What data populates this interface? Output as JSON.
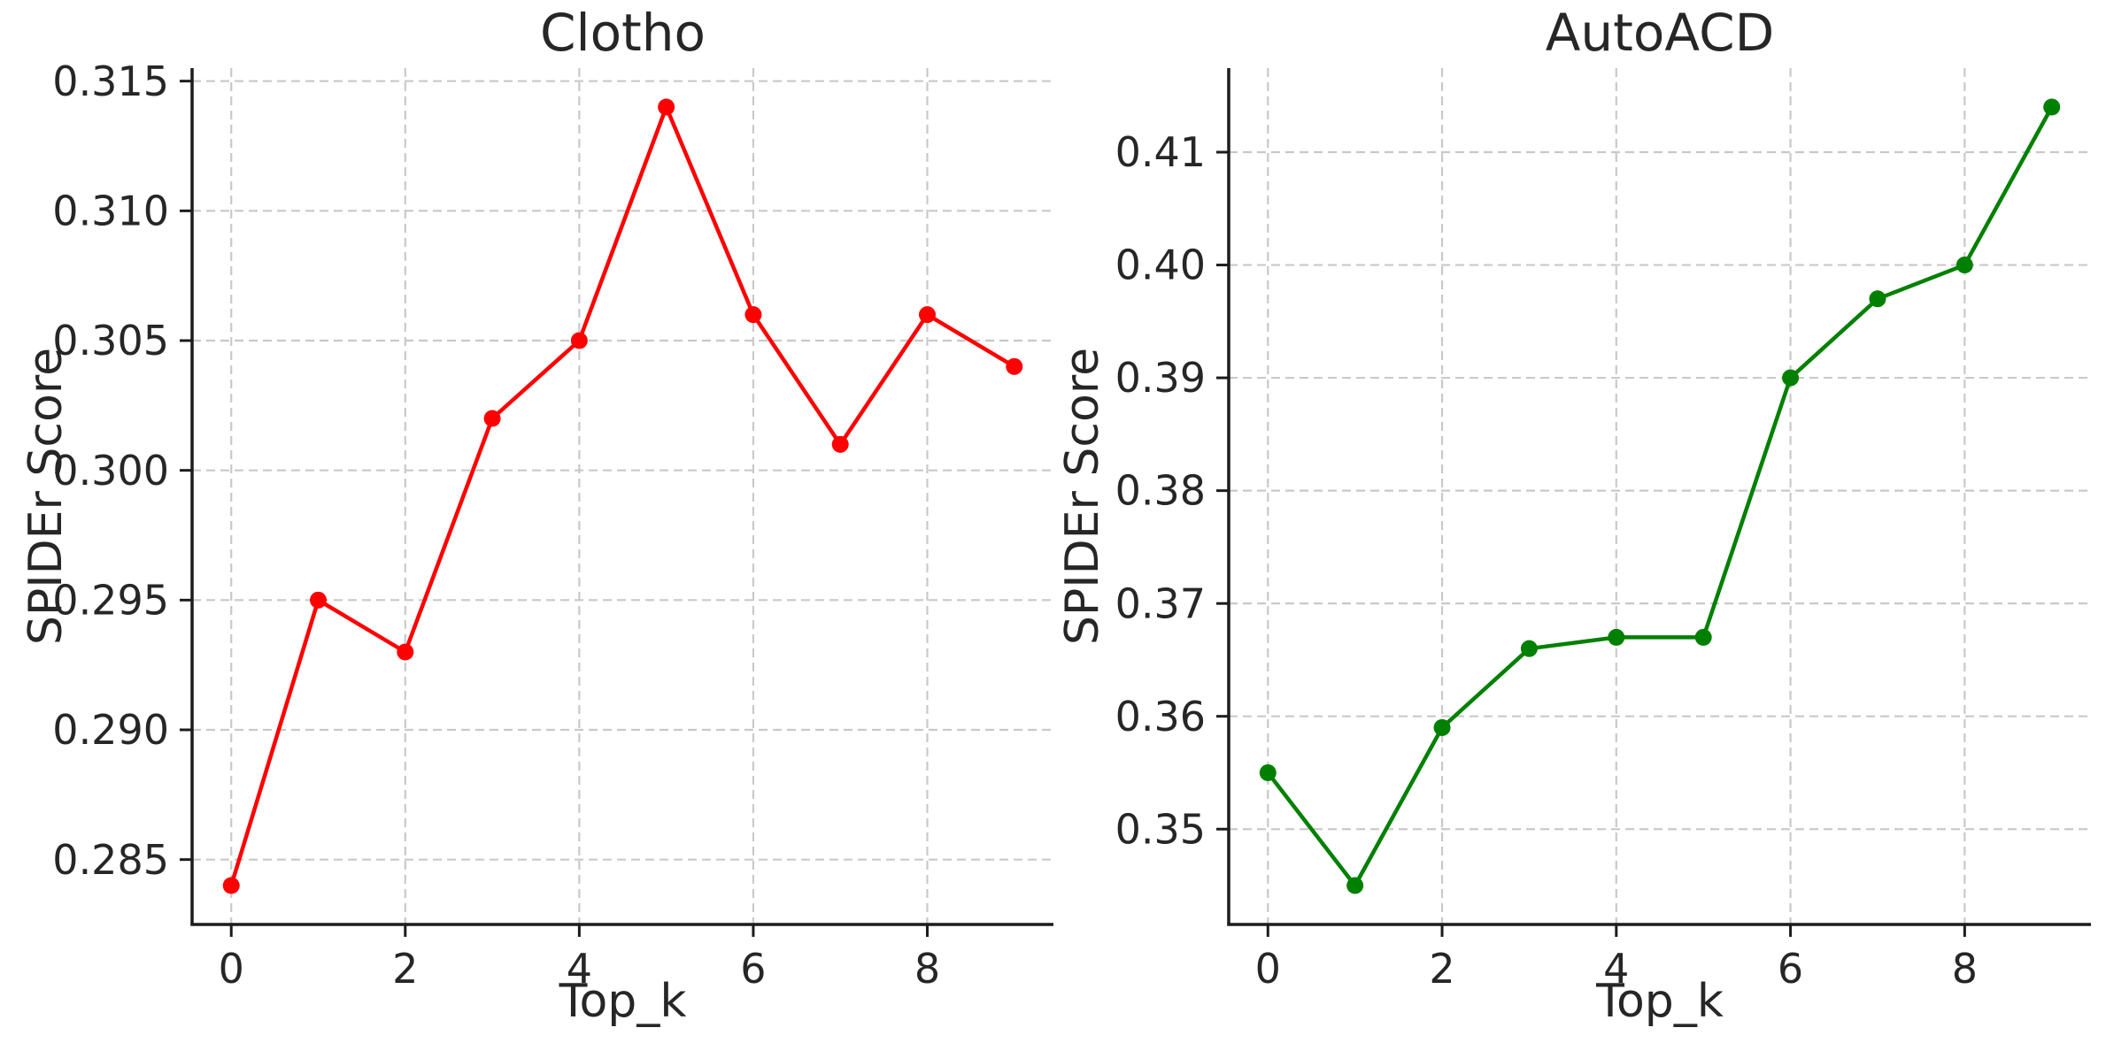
{
  "figure": {
    "background": "#ffffff",
    "text_color": "#262626"
  },
  "chart_data": [
    {
      "type": "line",
      "title": "Clotho",
      "xlabel": "Top_k",
      "ylabel": "SPIDEr Score",
      "x": [
        0,
        1,
        2,
        3,
        4,
        5,
        6,
        7,
        8,
        9
      ],
      "values": [
        0.284,
        0.295,
        0.293,
        0.302,
        0.305,
        0.314,
        0.306,
        0.301,
        0.306,
        0.304
      ],
      "line_color": "#ff0000",
      "marker": "circle",
      "grid": true,
      "legend": null,
      "xlim": [
        -0.45,
        9.45
      ],
      "ylim": [
        0.2825,
        0.3155
      ],
      "xticks": [
        0,
        2,
        4,
        6,
        8
      ],
      "xtick_labels": [
        "0",
        "2",
        "4",
        "6",
        "8"
      ],
      "yticks": [
        0.285,
        0.29,
        0.295,
        0.3,
        0.305,
        0.31,
        0.315
      ],
      "ytick_labels": [
        "0.285",
        "0.290",
        "0.295",
        "0.300",
        "0.305",
        "0.310",
        "0.315"
      ]
    },
    {
      "type": "line",
      "title": "AutoACD",
      "xlabel": "Top_k",
      "ylabel": "SPIDEr Score",
      "x": [
        0,
        1,
        2,
        3,
        4,
        5,
        6,
        7,
        8,
        9
      ],
      "values": [
        0.355,
        0.345,
        0.359,
        0.366,
        0.367,
        0.367,
        0.39,
        0.397,
        0.4,
        0.414
      ],
      "line_color": "#008000",
      "marker": "circle",
      "grid": true,
      "legend": null,
      "xlim": [
        -0.45,
        9.45
      ],
      "ylim": [
        0.34155,
        0.41745
      ],
      "xticks": [
        0,
        2,
        4,
        6,
        8
      ],
      "xtick_labels": [
        "0",
        "2",
        "4",
        "6",
        "8"
      ],
      "yticks": [
        0.35,
        0.36,
        0.37,
        0.38,
        0.39,
        0.4,
        0.41
      ],
      "ytick_labels": [
        "0.35",
        "0.36",
        "0.37",
        "0.38",
        "0.39",
        "0.40",
        "0.41"
      ]
    }
  ]
}
